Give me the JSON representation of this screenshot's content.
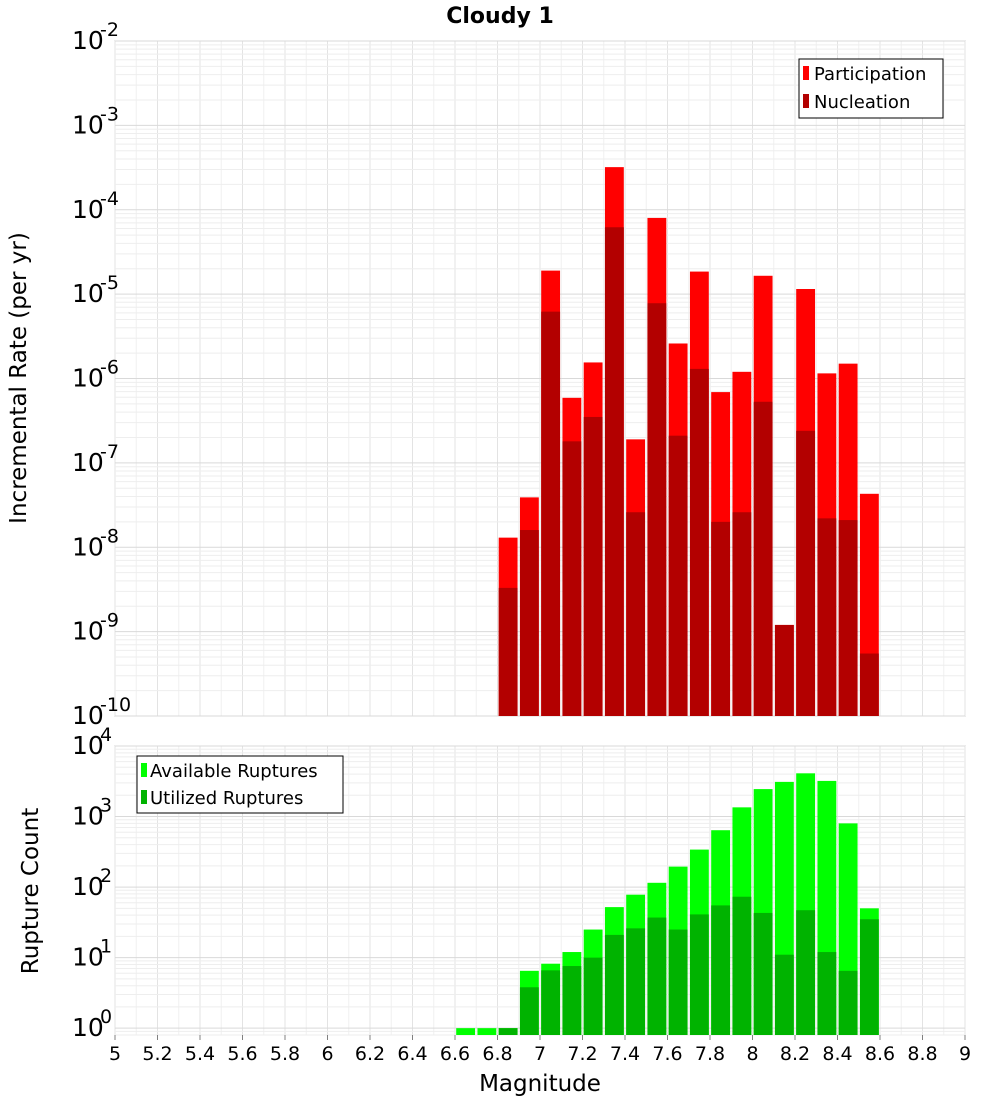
{
  "chart_data": [
    {
      "type": "bar",
      "title": "Cloudy 1",
      "xlabel": "",
      "ylabel": "Incremental Rate (per yr)",
      "yscale": "log",
      "ylim": [
        1e-10,
        0.01
      ],
      "xlim": [
        5,
        9
      ],
      "bar_width": 0.1,
      "legend_position": "top-right",
      "ytick_exponents": [
        "-10",
        "-9",
        "-8",
        "-7",
        "-6",
        "-5",
        "-4",
        "-3",
        "-2"
      ],
      "ytick_base": "10",
      "grid": true,
      "x": [
        6.85,
        6.95,
        7.05,
        7.15,
        7.25,
        7.35,
        7.45,
        7.55,
        7.65,
        7.75,
        7.85,
        7.95,
        8.05,
        8.15,
        8.25,
        8.35,
        8.45,
        8.55
      ],
      "series": [
        {
          "name": "Participation",
          "color": "#ff0000",
          "values": [
            1.3e-08,
            3.9e-08,
            1.9e-05,
            5.9e-07,
            1.55e-06,
            0.00032,
            1.9e-07,
            8e-05,
            2.6e-06,
            1.85e-05,
            6.9e-07,
            1.2e-06,
            1.65e-05,
            1.2e-09,
            1.15e-05,
            1.15e-06,
            1.5e-06,
            4.3e-08
          ]
        },
        {
          "name": "Nucleation",
          "color": "#b30000",
          "values": [
            3.3e-09,
            1.6e-08,
            6.2e-06,
            1.8e-07,
            3.5e-07,
            6.2e-05,
            2.6e-08,
            7.8e-06,
            2.1e-07,
            1.3e-06,
            2e-08,
            2.6e-08,
            5.3e-07,
            1.2e-09,
            2.4e-07,
            2.2e-08,
            2.1e-08,
            5.5e-10
          ]
        }
      ]
    },
    {
      "type": "bar",
      "title": "",
      "xlabel": "Magnitude",
      "ylabel": "Rupture Count",
      "yscale": "log",
      "ylim": [
        0.8,
        10000
      ],
      "xlim": [
        5,
        9
      ],
      "bar_width": 0.1,
      "legend_position": "top-left",
      "ytick_exponents": [
        "0",
        "1",
        "2",
        "3",
        "4"
      ],
      "ytick_base": "10",
      "xticks": [
        "5",
        "5.2",
        "5.4",
        "5.6",
        "5.8",
        "6",
        "6.2",
        "6.4",
        "6.6",
        "6.8",
        "7",
        "7.2",
        "7.4",
        "7.6",
        "7.8",
        "8",
        "8.2",
        "8.4",
        "8.6",
        "8.8",
        "9"
      ],
      "grid": true,
      "x": [
        6.65,
        6.75,
        6.85,
        6.95,
        7.05,
        7.15,
        7.25,
        7.35,
        7.45,
        7.55,
        7.65,
        7.75,
        7.85,
        7.95,
        8.05,
        8.15,
        8.25,
        8.35,
        8.45,
        8.55
      ],
      "series": [
        {
          "name": "Available Ruptures",
          "color": "#00ff00",
          "values": [
            1,
            1,
            1,
            6.5,
            8.2,
            12,
            25,
            52,
            78,
            115,
            195,
            340,
            640,
            1350,
            2450,
            3100,
            4100,
            3200,
            800,
            50
          ]
        },
        {
          "name": "Utilized Ruptures",
          "color": "#00b300",
          "values": [
            0,
            0,
            1,
            3.8,
            6.6,
            7.6,
            10,
            21,
            26,
            37,
            25,
            41,
            55,
            73,
            43,
            11,
            47,
            12,
            6.5,
            35
          ]
        }
      ]
    }
  ]
}
